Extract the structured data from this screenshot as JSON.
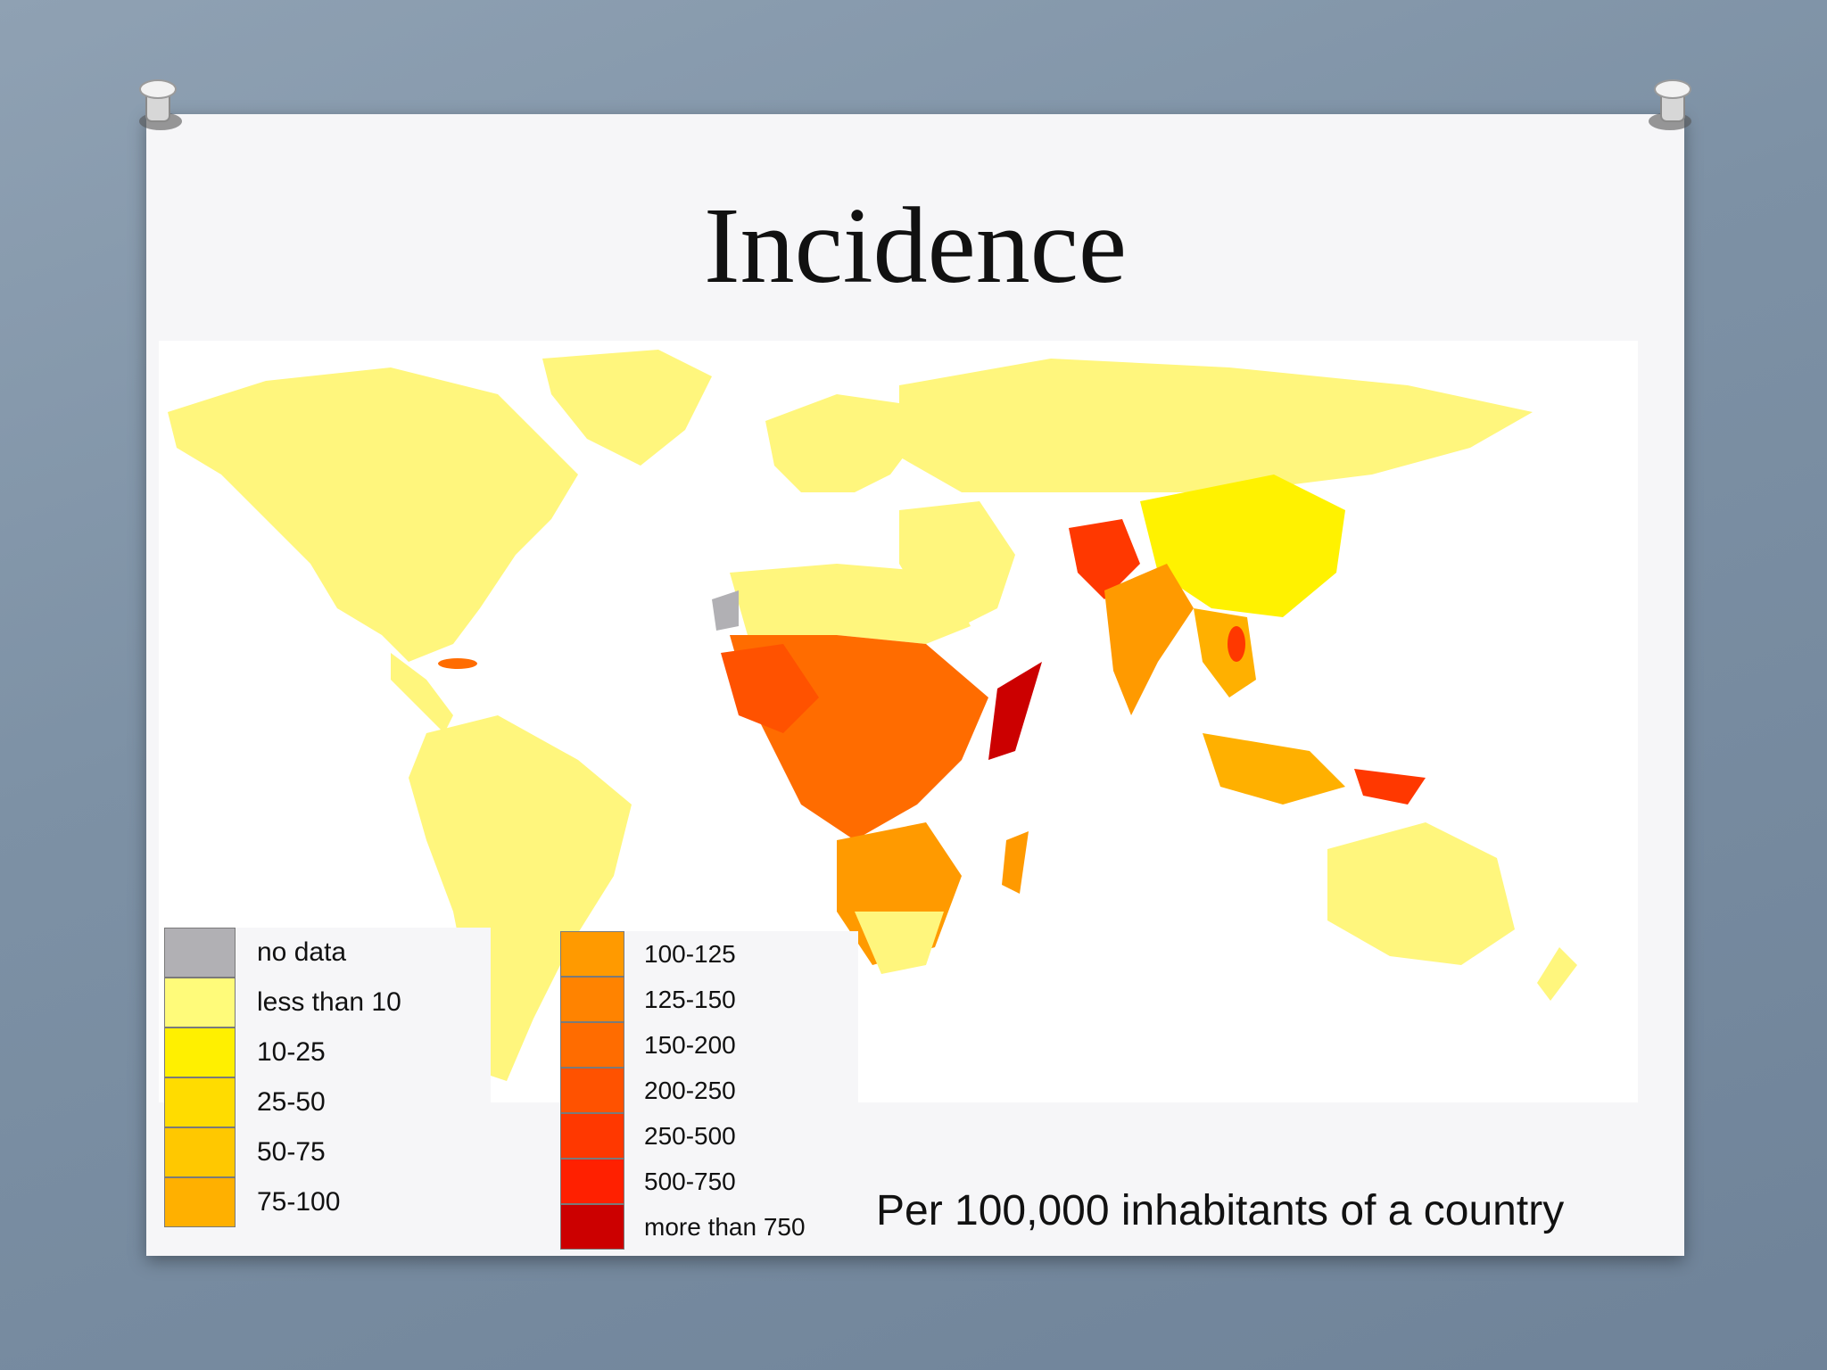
{
  "slide": {
    "title": "Incidence",
    "caption": "Per 100,000 inhabitants of a country"
  },
  "legend": {
    "left": [
      {
        "label": "no data",
        "color": "#b1b0b4"
      },
      {
        "label": "less than 10",
        "color": "#fffb7a"
      },
      {
        "label": "10-25",
        "color": "#fff000"
      },
      {
        "label": "25-50",
        "color": "#ffdc00"
      },
      {
        "label": "50-75",
        "color": "#ffc800"
      },
      {
        "label": "75-100",
        "color": "#ffb000"
      }
    ],
    "right": [
      {
        "label": "100-125",
        "color": "#ff9a00"
      },
      {
        "label": "125-150",
        "color": "#ff8300"
      },
      {
        "label": "150-200",
        "color": "#ff6c00"
      },
      {
        "label": "200-250",
        "color": "#ff5200"
      },
      {
        "label": "250-500",
        "color": "#ff3800"
      },
      {
        "label": "500-750",
        "color": "#ff2000"
      },
      {
        "label": "more than 750",
        "color": "#cc0000"
      }
    ]
  },
  "colors": {
    "background": "#7d91a5",
    "slide": "#f6f6f8",
    "ocean": "#ffffff"
  },
  "icons": [
    "pushpin-icon"
  ]
}
